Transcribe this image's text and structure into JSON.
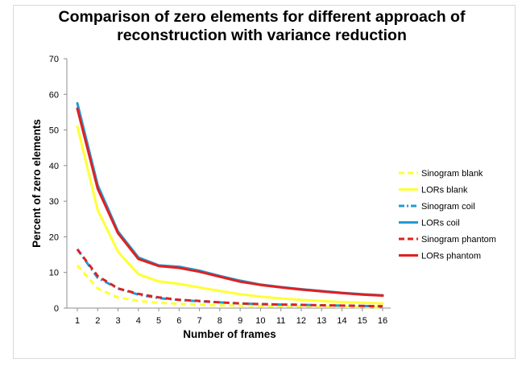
{
  "chart_data": {
    "type": "line",
    "title": "Comparison of zero elements for different approach of reconstruction with variance reduction",
    "xlabel": "Number of frames",
    "ylabel": "Percent of zero elements",
    "x": [
      1,
      2,
      3,
      4,
      5,
      6,
      7,
      8,
      9,
      10,
      11,
      12,
      13,
      14,
      15,
      16
    ],
    "xlim": [
      1,
      16
    ],
    "ylim": [
      0,
      70
    ],
    "yticks": [
      0,
      10,
      20,
      30,
      40,
      50,
      60,
      70
    ],
    "grid": false,
    "legend_position": "right",
    "series": [
      {
        "name": "Sinogram blank",
        "color": "#ffff33",
        "style": "dashed",
        "values": [
          12,
          5.5,
          3.0,
          2.0,
          1.5,
          1.2,
          1.0,
          0.8,
          0.7,
          0.6,
          0.5,
          0.45,
          0.4,
          0.35,
          0.3,
          0.25
        ]
      },
      {
        "name": "LORs blank",
        "color": "#ffff33",
        "style": "solid",
        "values": [
          51,
          27.5,
          15.8,
          9.5,
          7.5,
          6.8,
          5.8,
          4.8,
          3.9,
          3.2,
          2.7,
          2.3,
          2.0,
          1.7,
          1.5,
          1.3
        ]
      },
      {
        "name": "Sinogram coil",
        "color": "#1f9bd6",
        "style": "dashdot",
        "values": [
          16.5,
          8.5,
          5.5,
          3.8,
          2.8,
          2.3,
          1.9,
          1.6,
          1.3,
          1.1,
          1.0,
          0.9,
          0.8,
          0.7,
          0.6,
          0.5
        ]
      },
      {
        "name": "LORs coil",
        "color": "#1f9bd6",
        "style": "solid",
        "values": [
          57.5,
          34.5,
          21.5,
          14.2,
          12.0,
          11.6,
          10.5,
          9.0,
          7.7,
          6.6,
          5.9,
          5.3,
          4.8,
          4.3,
          3.9,
          3.6
        ]
      },
      {
        "name": "Sinogram phantom",
        "color": "#e02020",
        "style": "dashed",
        "values": [
          16.5,
          9.0,
          5.5,
          4.0,
          3.0,
          2.3,
          2.0,
          1.6,
          1.3,
          1.1,
          1.0,
          0.9,
          0.8,
          0.7,
          0.6,
          0.5
        ]
      },
      {
        "name": "LORs phantom",
        "color": "#e02020",
        "style": "solid",
        "values": [
          56.0,
          33.5,
          21.0,
          13.8,
          11.8,
          11.3,
          10.2,
          8.8,
          7.4,
          6.5,
          5.8,
          5.2,
          4.7,
          4.2,
          3.8,
          3.5
        ]
      }
    ]
  }
}
